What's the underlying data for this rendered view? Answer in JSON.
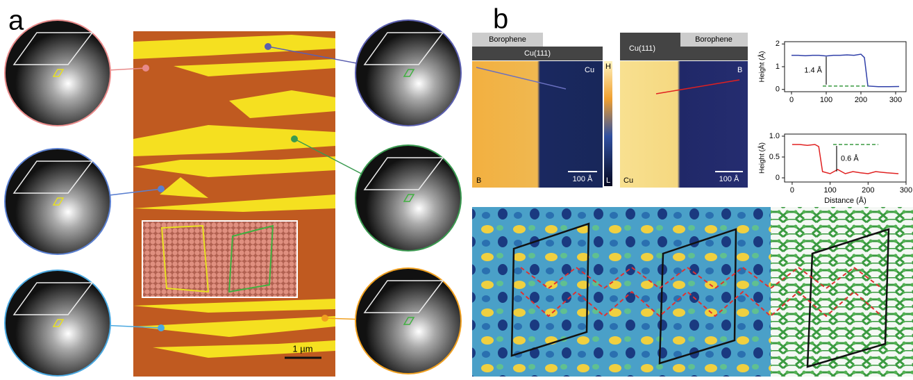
{
  "panel_a": {
    "label": "a",
    "scale_bar": "1 µm"
  },
  "panel_b": {
    "label": "b",
    "left_image": {
      "top_label": "Borophene",
      "bar_label": "Cu(111)",
      "corner_right": "Cu",
      "corner_left": "B",
      "scale_bar": "100 Å"
    },
    "colorbar": {
      "high": "H",
      "low": "L"
    },
    "right_image": {
      "bar_label": "Cu(111)",
      "top_label": "Borophene",
      "corner_right": "B",
      "corner_left": "Cu",
      "scale_bar": "100 Å"
    }
  },
  "chart_data": [
    {
      "type": "line",
      "y_label": "Height (Å)",
      "annotation": "1.4 Å",
      "xlim": [
        -20,
        330
      ],
      "ylim": [
        -0.1,
        2.1
      ],
      "xticks": [
        0,
        100,
        200,
        300
      ],
      "yticks": [
        0,
        1,
        2
      ],
      "series": [
        {
          "color": "#2f3fa8",
          "x": [
            0,
            20,
            40,
            60,
            80,
            100,
            120,
            140,
            160,
            180,
            200,
            210,
            220,
            250,
            280,
            310
          ],
          "values": [
            1.5,
            1.5,
            1.48,
            1.5,
            1.5,
            1.47,
            1.5,
            1.5,
            1.52,
            1.5,
            1.55,
            1.4,
            0.15,
            0.12,
            0.12,
            0.13
          ]
        }
      ]
    },
    {
      "type": "line",
      "y_label": "Height (Å)",
      "x_label": "Distance (Å)",
      "annotation": "0.6 Å",
      "xlim": [
        -20,
        300
      ],
      "ylim": [
        -0.1,
        1.05
      ],
      "xticks": [
        0,
        100,
        200,
        300
      ],
      "yticks": [
        0,
        0.5,
        {
          "value": 1,
          "label": "1.0"
        }
      ],
      "series": [
        {
          "color": "#e02020",
          "x": [
            0,
            20,
            40,
            60,
            70,
            80,
            100,
            120,
            140,
            160,
            180,
            200,
            220,
            250,
            280
          ],
          "values": [
            0.8,
            0.8,
            0.78,
            0.8,
            0.75,
            0.15,
            0.1,
            0.2,
            0.1,
            0.15,
            0.12,
            0.1,
            0.15,
            0.12,
            0.1
          ]
        }
      ]
    }
  ]
}
